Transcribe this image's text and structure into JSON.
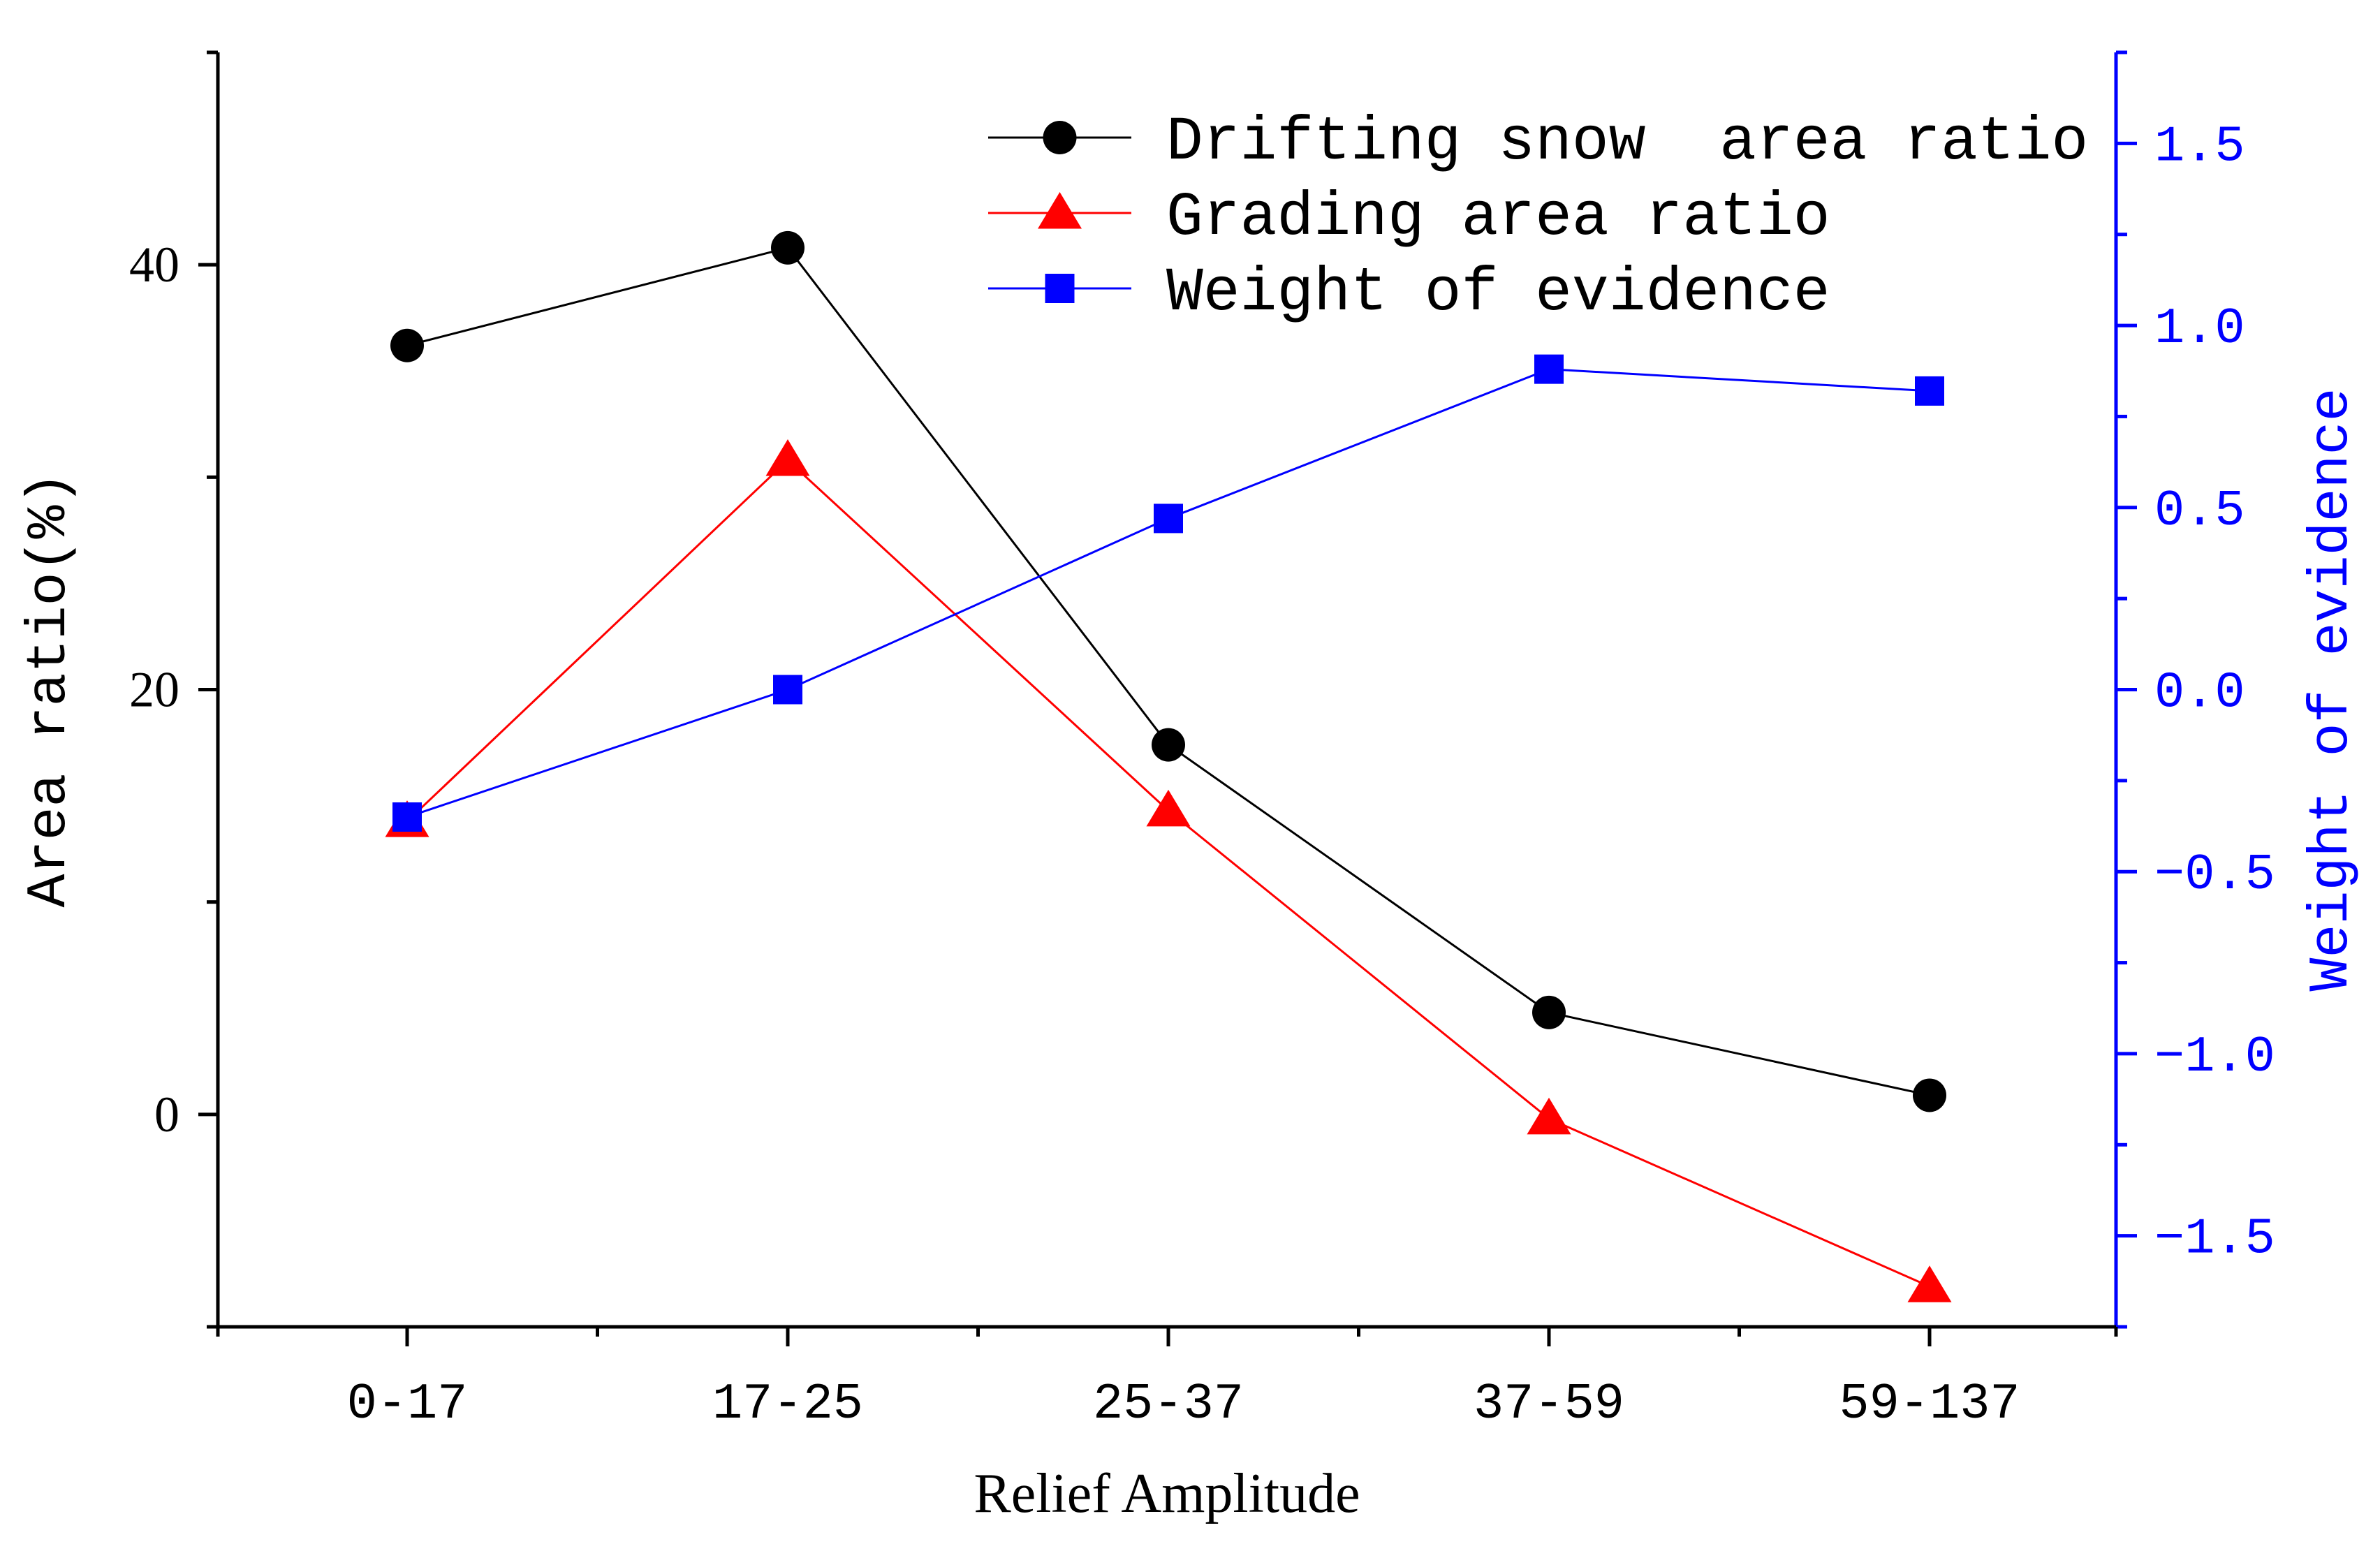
{
  "chart_data": {
    "type": "line",
    "title": "",
    "xlabel": "Relief Amplitude",
    "ylabel": "Area ratio(%)",
    "y2label": "Weight of evidence",
    "categories": [
      "0-17",
      "17-25",
      "25-37",
      "37-59",
      "59-137"
    ],
    "ylim": [
      -10,
      50
    ],
    "y2lim": [
      -1.75,
      1.75
    ],
    "yticks": [
      0,
      20,
      40
    ],
    "y2ticks": [
      -1.5,
      -1.0,
      -0.5,
      0.0,
      0.5,
      1.0,
      1.5
    ],
    "y2tick_labels": [
      "−1.5",
      "−1.0",
      "−0.5",
      "0.0",
      "0.5",
      "1.0",
      "1.5"
    ],
    "series": [
      {
        "name": "Drifting snow  area ratio",
        "axis": "left",
        "marker": "circle",
        "color": "#000000",
        "values": [
          36.2,
          40.8,
          17.4,
          4.8,
          0.9
        ]
      },
      {
        "name": "Grading area ratio",
        "axis": "left",
        "marker": "triangle",
        "color": "#ff0000",
        "values": [
          13.8,
          30.8,
          14.3,
          -0.2,
          -8.1
        ]
      },
      {
        "name": "Weight of evidence",
        "axis": "right",
        "marker": "square",
        "color": "#0000ff",
        "values": [
          -0.35,
          0.0,
          0.47,
          0.88,
          0.82
        ]
      }
    ],
    "legend_position": "top-right",
    "grid": false,
    "colors": {
      "left_axis": "#000000",
      "right_axis": "#0000ff"
    }
  }
}
